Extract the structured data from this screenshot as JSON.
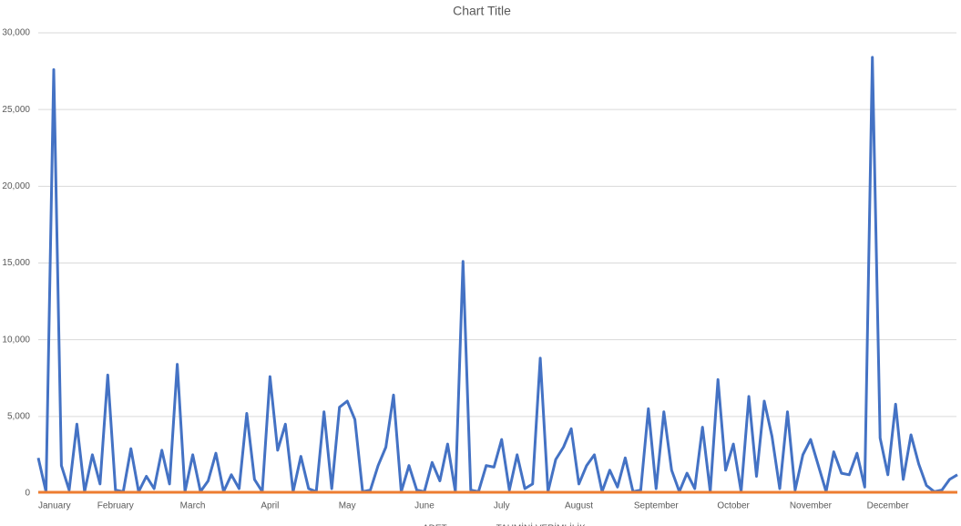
{
  "chart_data": {
    "type": "line",
    "title": "Chart Title",
    "categories": [
      "January",
      null,
      null,
      null,
      null,
      null,
      null,
      null,
      null,
      null,
      "February",
      null,
      null,
      null,
      null,
      null,
      null,
      null,
      null,
      null,
      "March",
      null,
      null,
      null,
      null,
      null,
      null,
      null,
      null,
      null,
      "April",
      null,
      null,
      null,
      null,
      null,
      null,
      null,
      null,
      null,
      "May",
      null,
      null,
      null,
      null,
      null,
      null,
      null,
      null,
      null,
      "June",
      null,
      null,
      null,
      null,
      null,
      null,
      null,
      null,
      null,
      "July",
      null,
      null,
      null,
      null,
      null,
      null,
      null,
      null,
      null,
      "August",
      null,
      null,
      null,
      null,
      null,
      null,
      null,
      null,
      null,
      "September",
      null,
      null,
      null,
      null,
      null,
      null,
      null,
      null,
      null,
      "October",
      null,
      null,
      null,
      null,
      null,
      null,
      null,
      null,
      null,
      "November",
      null,
      null,
      null,
      null,
      null,
      null,
      null,
      null,
      null,
      "December",
      null,
      null,
      null,
      null,
      null,
      null,
      null,
      null,
      null
    ],
    "series": [
      {
        "name": "ADET",
        "color": "#4472c4",
        "values": [
          2300,
          100,
          27600,
          1800,
          200,
          4500,
          100,
          2500,
          600,
          7700,
          200,
          100,
          2900,
          100,
          1100,
          300,
          2800,
          600,
          8400,
          100,
          2500,
          100,
          800,
          2600,
          100,
          1200,
          300,
          5200,
          900,
          100,
          7600,
          2800,
          4500,
          100,
          2400,
          300,
          100,
          5300,
          300,
          5600,
          6000,
          4800,
          100,
          200,
          1800,
          3000,
          6400,
          100,
          1800,
          200,
          100,
          2000,
          800,
          3200,
          100,
          15100,
          200,
          100,
          1800,
          1700,
          3500,
          200,
          2500,
          300,
          600,
          8800,
          100,
          2200,
          3000,
          4200,
          600,
          1800,
          2500,
          100,
          1500,
          400,
          2300,
          100,
          200,
          5500,
          300,
          5300,
          1500,
          100,
          1300,
          300,
          4300,
          100,
          7400,
          1500,
          3200,
          100,
          6300,
          1100,
          6000,
          3700,
          300,
          5300,
          200,
          2500,
          3500,
          1800,
          100,
          2700,
          1300,
          1200,
          2600,
          400,
          28400,
          3600,
          1200,
          5800,
          900,
          3800,
          1900,
          500,
          100,
          200,
          900,
          1200
        ]
      },
      {
        "name": "TAHMİNİ VERİMLİLİK",
        "color": "#ed7d31",
        "values": [
          60,
          60,
          60,
          60,
          60,
          60,
          60,
          60,
          60,
          60,
          60,
          60,
          60,
          60,
          60,
          60,
          60,
          60,
          60,
          60,
          60,
          60,
          60,
          60,
          60,
          60,
          60,
          60,
          60,
          60,
          60,
          60,
          60,
          60,
          60,
          60,
          60,
          60,
          60,
          60,
          60,
          60,
          60,
          60,
          60,
          60,
          60,
          60,
          60,
          60,
          60,
          60,
          60,
          60,
          60,
          60,
          60,
          60,
          60,
          60,
          60,
          60,
          60,
          60,
          60,
          60,
          60,
          60,
          60,
          60,
          60,
          60,
          60,
          60,
          60,
          60,
          60,
          60,
          60,
          60,
          60,
          60,
          60,
          60,
          60,
          60,
          60,
          60,
          60,
          60,
          60,
          60,
          60,
          60,
          60,
          60,
          60,
          60,
          60,
          60,
          60,
          60,
          60,
          60,
          60,
          60,
          60,
          60,
          60,
          60,
          60,
          60,
          60,
          60,
          60,
          60,
          60,
          60,
          60,
          60
        ]
      }
    ],
    "ylim": [
      0,
      30000
    ],
    "yticks": [
      0,
      {
        "value": 5000,
        "label": "5,000"
      },
      {
        "value": 10000,
        "label": "10,000"
      },
      {
        "value": 15000,
        "label": "15,000"
      },
      {
        "value": 20000,
        "label": "20,000"
      },
      {
        "value": 25000,
        "label": "25,000"
      },
      {
        "value": 30000,
        "label": "30,000"
      }
    ],
    "grid": true,
    "legend": "bottom"
  }
}
